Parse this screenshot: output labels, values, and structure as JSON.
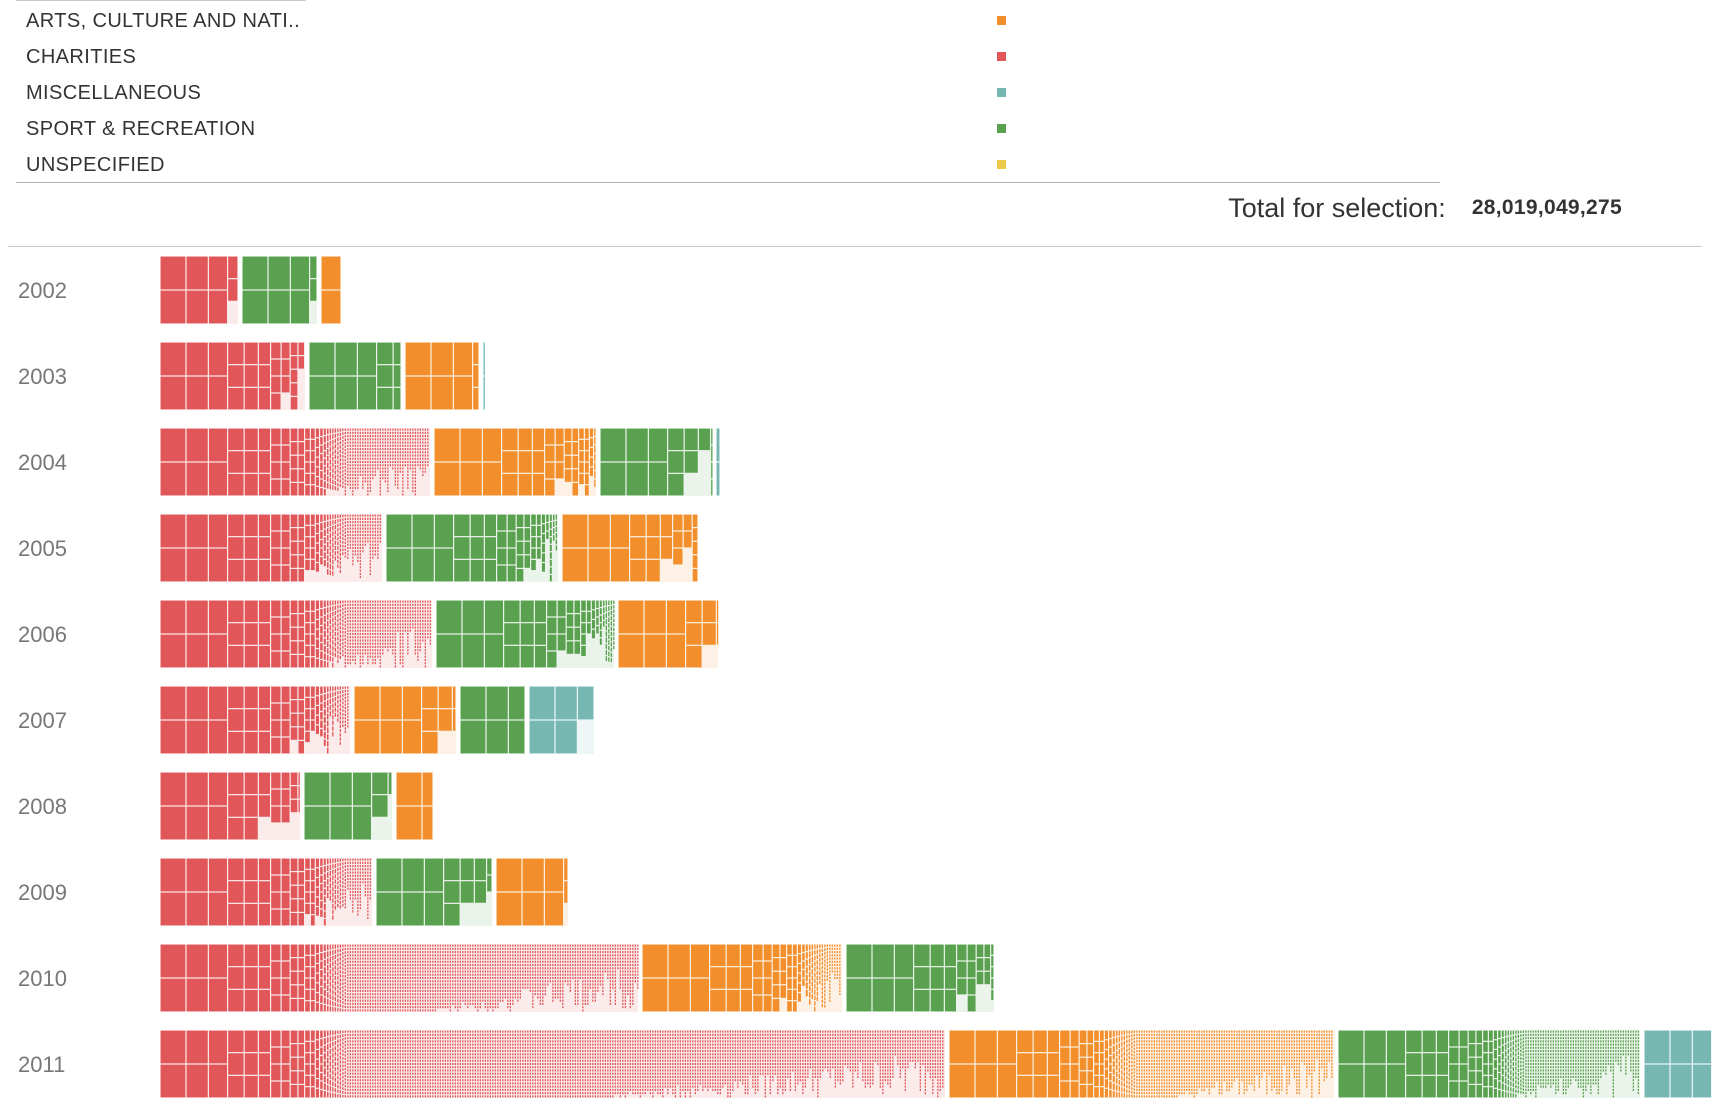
{
  "legend": {
    "items": [
      {
        "label": "ARTS, CULTURE AND NATI..",
        "color": "#f28e2b"
      },
      {
        "label": "CHARITIES",
        "color": "#e15759"
      },
      {
        "label": "MISCELLANEOUS",
        "color": "#76b7b2"
      },
      {
        "label": "SPORT & RECREATION",
        "color": "#59a14f"
      },
      {
        "label": "UNSPECIFIED",
        "color": "#edc948"
      }
    ]
  },
  "summary": {
    "total_label": "Total for selection:",
    "total_value": "28,019,049,275"
  },
  "chart_data": {
    "type": "bar",
    "subtype": "stacked horizontal bars subdivided into treemap tiles (one tile per grant)",
    "categories": [
      "2002",
      "2003",
      "2004",
      "2005",
      "2006",
      "2007",
      "2008",
      "2009",
      "2010",
      "2011"
    ],
    "series": [
      {
        "name": "CHARITIES",
        "color": "#e15759",
        "values": [
          78,
          145,
          270,
          222,
          272,
          190,
          140,
          212,
          478,
          785
        ]
      },
      {
        "name": "SPORT & RECREATION",
        "color": "#59a14f",
        "values": [
          75,
          92,
          112,
          172,
          178,
          65,
          88,
          116,
          148,
          302
        ]
      },
      {
        "name": "ARTS, CULTURE AND NATI..",
        "color": "#f28e2b",
        "values": [
          20,
          74,
          162,
          136,
          100,
          102,
          37,
          72,
          200,
          385
        ]
      },
      {
        "name": "MISCELLANEOUS",
        "color": "#76b7b2",
        "values": [
          0,
          2,
          4,
          0,
          0,
          65,
          0,
          0,
          0,
          68
        ]
      },
      {
        "name": "UNSPECIFIED",
        "color": "#edc948",
        "values": [
          0,
          0,
          0,
          0,
          0,
          0,
          0,
          0,
          0,
          0
        ]
      }
    ],
    "segment_order": [
      [
        "CHARITIES",
        "SPORT & RECREATION",
        "ARTS, CULTURE AND NATI.."
      ],
      [
        "CHARITIES",
        "SPORT & RECREATION",
        "ARTS, CULTURE AND NATI..",
        "MISCELLANEOUS"
      ],
      [
        "CHARITIES",
        "ARTS, CULTURE AND NATI..",
        "SPORT & RECREATION",
        "MISCELLANEOUS"
      ],
      [
        "CHARITIES",
        "SPORT & RECREATION",
        "ARTS, CULTURE AND NATI.."
      ],
      [
        "CHARITIES",
        "SPORT & RECREATION",
        "ARTS, CULTURE AND NATI.."
      ],
      [
        "CHARITIES",
        "ARTS, CULTURE AND NATI..",
        "SPORT & RECREATION",
        "MISCELLANEOUS"
      ],
      [
        "CHARITIES",
        "SPORT & RECREATION",
        "ARTS, CULTURE AND NATI.."
      ],
      [
        "CHARITIES",
        "SPORT & RECREATION",
        "ARTS, CULTURE AND NATI.."
      ],
      [
        "CHARITIES",
        "ARTS, CULTURE AND NATI..",
        "SPORT & RECREATION"
      ],
      [
        "CHARITIES",
        "ARTS, CULTURE AND NATI..",
        "SPORT & RECREATION",
        "MISCELLANEOUS"
      ]
    ],
    "total": 28019049275,
    "xlabel": "",
    "ylabel": "",
    "grid": false,
    "legend": "top"
  }
}
